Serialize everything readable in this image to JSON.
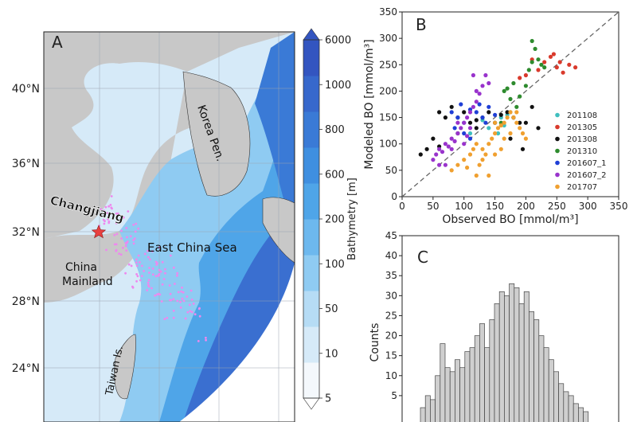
{
  "panel_a": {
    "label": "A",
    "lat_labels": [
      "40°N",
      "36°N",
      "32°N",
      "28°N",
      "24°N"
    ],
    "place_labels": {
      "changjiang": "Changjiang",
      "korea": "Korea Pen.",
      "east_china_sea": "East China Sea",
      "china_line1": "China",
      "china_line2": "Mainland",
      "taiwan": "Taiwan Is."
    },
    "colorbar": {
      "title": "Bathymetry [m]",
      "ticks": [
        "6000",
        "1000",
        "800",
        "600",
        "200",
        "100",
        "50",
        "10",
        "5"
      ],
      "colors": [
        "#f4f8fc",
        "#d6eaf8",
        "#b6dcf5",
        "#8fcbf2",
        "#6db8ee",
        "#4fa5e8",
        "#3f8fe0",
        "#3a7ad6",
        "#3768cc",
        "#3355c0"
      ]
    },
    "colors": {
      "land": "#c8c8c8",
      "shallow": "#d6eaf8",
      "deep": "#3a6fd0",
      "station": "#ee88ee",
      "star": "#e84040"
    }
  },
  "chart_data": [
    {
      "panel": "B",
      "type": "scatter",
      "xlabel": "Observed BO [mmol/m³]",
      "ylabel": "Modeled BO [mmol/m³]",
      "xlim": [
        0,
        350
      ],
      "ylim": [
        0,
        350
      ],
      "xticks": [
        0,
        50,
        100,
        150,
        200,
        250,
        300,
        350
      ],
      "yticks": [
        0,
        50,
        100,
        150,
        200,
        250,
        300,
        350
      ],
      "legend_position": "right",
      "identity_line": true,
      "series": [
        {
          "name": "201108",
          "color": "#3fbfbf",
          "points": [
            [
              150,
              140
            ],
            [
              160,
              150
            ],
            [
              170,
              155
            ],
            [
              155,
              120
            ],
            [
              140,
              130
            ],
            [
              165,
              135
            ],
            [
              175,
              160
            ],
            [
              180,
              150
            ],
            [
              130,
              145
            ],
            [
              110,
              120
            ]
          ]
        },
        {
          "name": "201305",
          "color": "#d93a2c",
          "points": [
            [
              210,
              260
            ],
            [
              230,
              255
            ],
            [
              250,
              245
            ],
            [
              270,
              250
            ],
            [
              280,
              245
            ],
            [
              260,
              235
            ],
            [
              220,
              240
            ],
            [
              240,
              265
            ],
            [
              200,
              230
            ],
            [
              190,
              225
            ],
            [
              255,
              255
            ],
            [
              245,
              270
            ]
          ]
        },
        {
          "name": "201308",
          "color": "#111111",
          "points": [
            [
              30,
              80
            ],
            [
              40,
              90
            ],
            [
              50,
              110
            ],
            [
              60,
              95
            ],
            [
              70,
              150
            ],
            [
              80,
              170
            ],
            [
              90,
              150
            ],
            [
              100,
              160
            ],
            [
              110,
              140
            ],
            [
              120,
              145
            ],
            [
              130,
              150
            ],
            [
              140,
              160
            ],
            [
              150,
              140
            ],
            [
              160,
              155
            ],
            [
              170,
              160
            ],
            [
              180,
              150
            ],
            [
              190,
              140
            ],
            [
              200,
              140
            ],
            [
              210,
              170
            ],
            [
              220,
              130
            ],
            [
              60,
              160
            ],
            [
              90,
              120
            ],
            [
              120,
              130
            ],
            [
              175,
              110
            ],
            [
              195,
              90
            ]
          ]
        },
        {
          "name": "201310",
          "color": "#2e8b2e",
          "points": [
            [
              170,
              205
            ],
            [
              180,
              215
            ],
            [
              190,
              190
            ],
            [
              200,
              210
            ],
            [
              205,
              240
            ],
            [
              210,
              255
            ],
            [
              220,
              260
            ],
            [
              225,
              250
            ],
            [
              230,
              245
            ],
            [
              215,
              280
            ],
            [
              210,
              295
            ],
            [
              160,
              140
            ],
            [
              175,
              185
            ],
            [
              185,
              170
            ],
            [
              165,
              200
            ]
          ]
        },
        {
          "name": "201607_1",
          "color": "#1f3fd6",
          "points": [
            [
              80,
              160
            ],
            [
              90,
              150
            ],
            [
              100,
              140
            ],
            [
              110,
              165
            ],
            [
              120,
              160
            ],
            [
              130,
              150
            ],
            [
              140,
              170
            ],
            [
              150,
              155
            ],
            [
              100,
              120
            ],
            [
              110,
              110
            ],
            [
              85,
              130
            ],
            [
              125,
              175
            ],
            [
              95,
              175
            ],
            [
              135,
              140
            ]
          ]
        },
        {
          "name": "201607_2",
          "color": "#9933cc",
          "points": [
            [
              50,
              70
            ],
            [
              55,
              80
            ],
            [
              60,
              90
            ],
            [
              65,
              85
            ],
            [
              70,
              100
            ],
            [
              75,
              95
            ],
            [
              80,
              110
            ],
            [
              85,
              105
            ],
            [
              90,
              120
            ],
            [
              95,
              130
            ],
            [
              100,
              140
            ],
            [
              105,
              150
            ],
            [
              110,
              160
            ],
            [
              115,
              170
            ],
            [
              120,
              180
            ],
            [
              125,
              195
            ],
            [
              130,
              210
            ],
            [
              135,
              230
            ],
            [
              140,
              215
            ],
            [
              120,
              200
            ],
            [
              115,
              230
            ],
            [
              90,
              140
            ],
            [
              80,
              90
            ],
            [
              70,
              60
            ],
            [
              60,
              60
            ],
            [
              110,
              130
            ],
            [
              100,
              100
            ],
            [
              105,
              115
            ]
          ]
        },
        {
          "name": "201707",
          "color": "#f0a030",
          "points": [
            [
              80,
              50
            ],
            [
              90,
              60
            ],
            [
              100,
              70
            ],
            [
              110,
              80
            ],
            [
              115,
              90
            ],
            [
              120,
              100
            ],
            [
              125,
              60
            ],
            [
              130,
              70
            ],
            [
              135,
              80
            ],
            [
              140,
              100
            ],
            [
              145,
              110
            ],
            [
              150,
              120
            ],
            [
              155,
              130
            ],
            [
              160,
              135
            ],
            [
              165,
              140
            ],
            [
              170,
              150
            ],
            [
              175,
              160
            ],
            [
              180,
              150
            ],
            [
              185,
              140
            ],
            [
              190,
              130
            ],
            [
              195,
              120
            ],
            [
              200,
              110
            ],
            [
              140,
              40
            ],
            [
              120,
              40
            ],
            [
              105,
              55
            ],
            [
              160,
              90
            ],
            [
              150,
              80
            ],
            [
              130,
              90
            ],
            [
              175,
              120
            ],
            [
              165,
              110
            ],
            [
              185,
              160
            ],
            [
              150,
              140
            ]
          ]
        }
      ]
    },
    {
      "panel": "C",
      "type": "bar",
      "ylabel": "Counts",
      "ylim": [
        0,
        45
      ],
      "yticks": [
        5,
        10,
        15,
        20,
        25,
        30,
        35,
        40,
        45
      ],
      "values": [
        2,
        5,
        4,
        10,
        18,
        12,
        11,
        14,
        12,
        16,
        17,
        20,
        23,
        17,
        24,
        28,
        31,
        30,
        33,
        32,
        28,
        31,
        26,
        24,
        20,
        17,
        14,
        11,
        8,
        6,
        5,
        3,
        2,
        1
      ]
    }
  ]
}
